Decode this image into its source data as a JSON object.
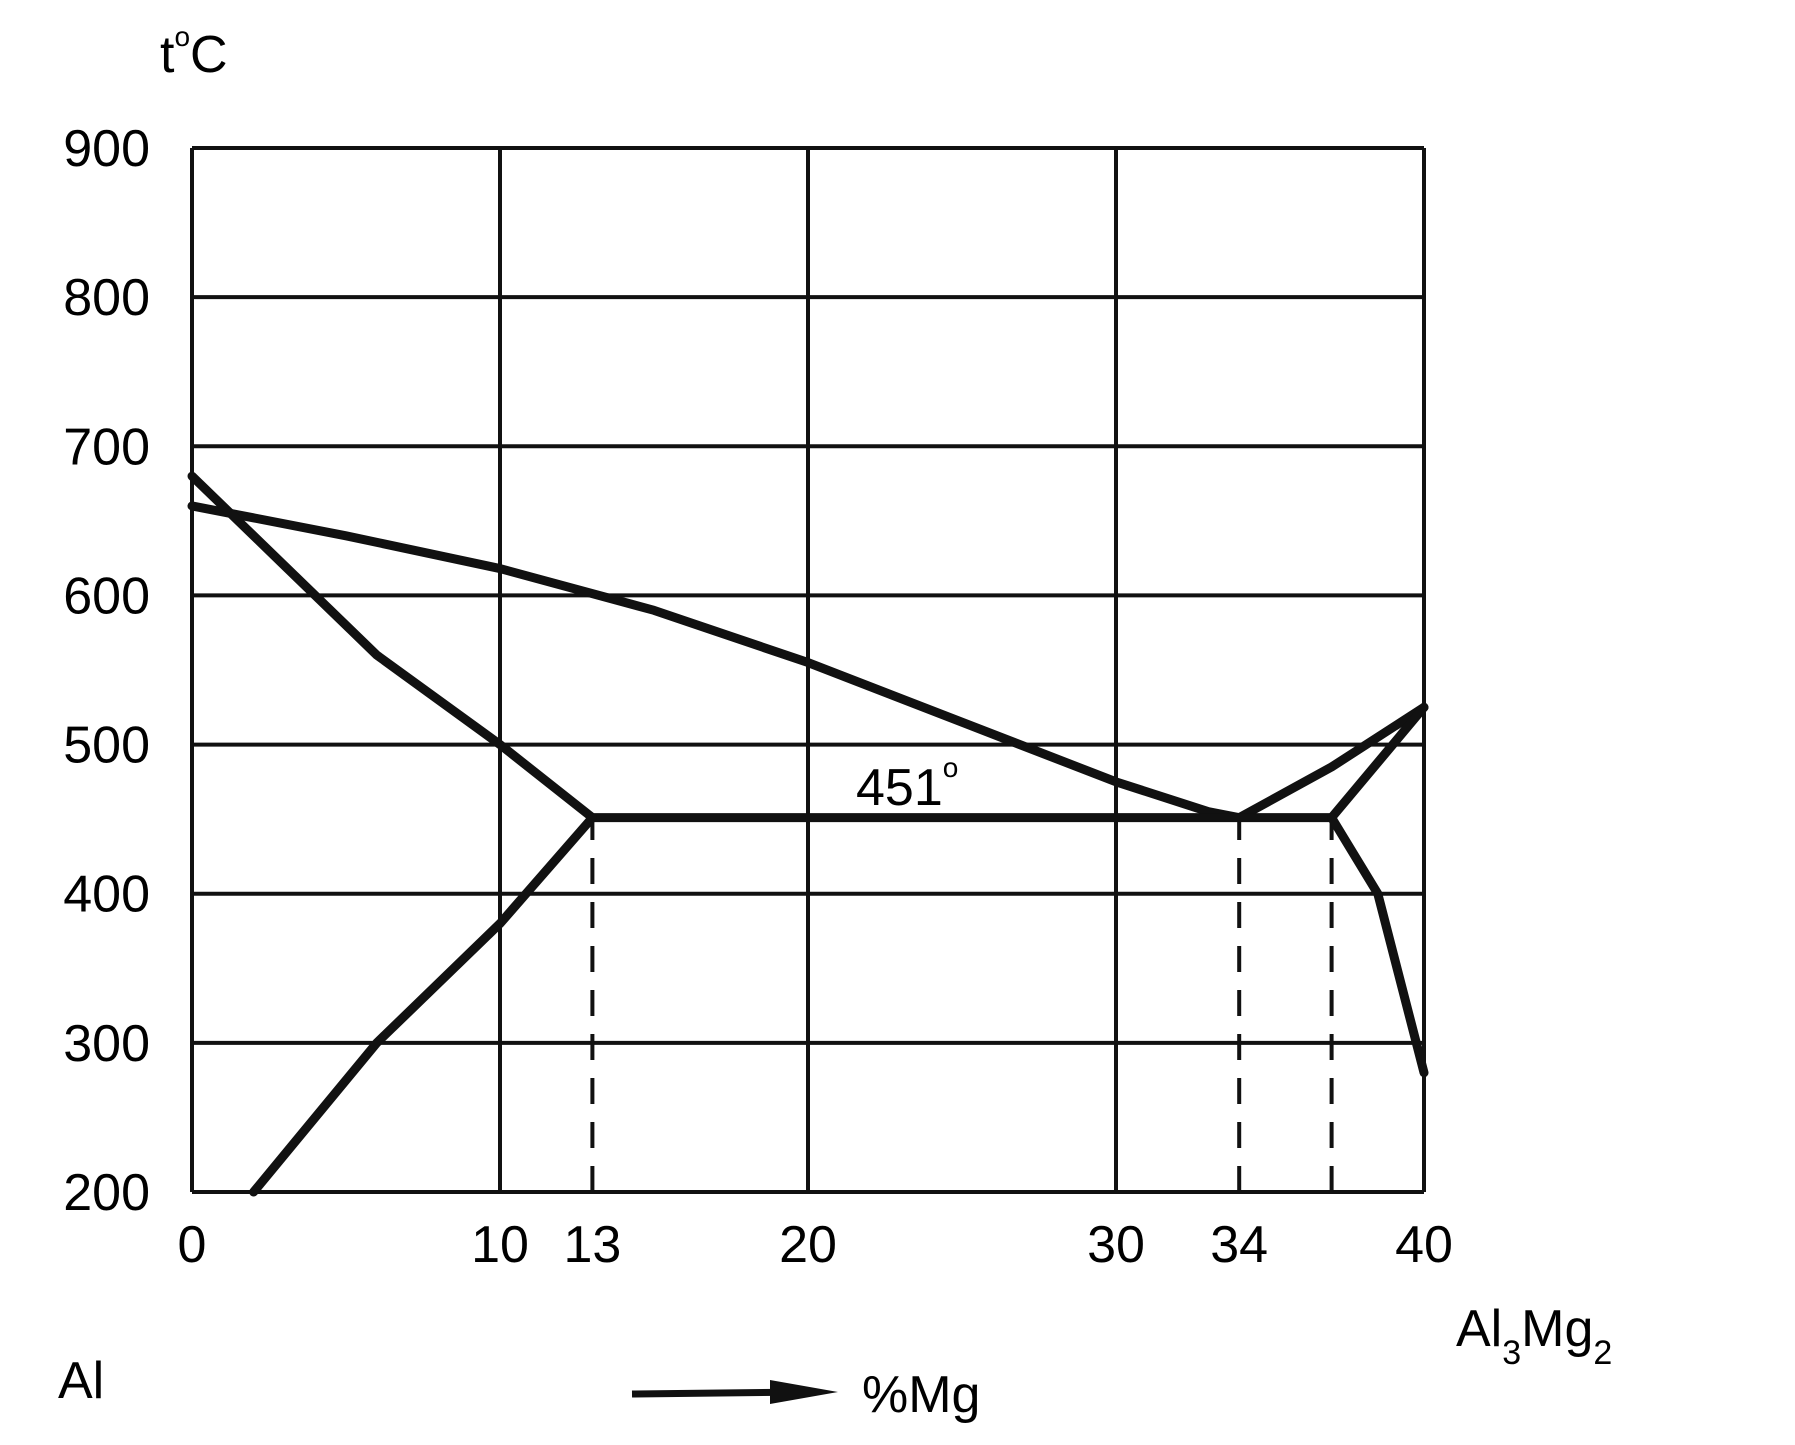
{
  "chart_data": {
    "type": "line",
    "title": "",
    "xlabel": "%Mg",
    "ylabel": "t°C",
    "xlim": [
      0,
      40
    ],
    "ylim": [
      200,
      900
    ],
    "grid": true,
    "y_ticks": [
      "900",
      "800",
      "700",
      "600",
      "500",
      "400",
      "300",
      "200"
    ],
    "x_ticks": [
      {
        "value": 0,
        "label": "0"
      },
      {
        "value": 10,
        "label": "10"
      },
      {
        "value": 13,
        "label": "13"
      },
      {
        "value": 20,
        "label": "20"
      },
      {
        "value": 30,
        "label": "30"
      },
      {
        "value": 34,
        "label": "34"
      },
      {
        "value": 40,
        "label": "40"
      }
    ],
    "grid_x": [
      0,
      10,
      20,
      30,
      40
    ],
    "grid_y": [
      200,
      300,
      400,
      500,
      600,
      700,
      800,
      900
    ],
    "series": [
      {
        "x": [
          0,
          5,
          10,
          15,
          20,
          25,
          30,
          33,
          34
        ],
        "y": [
          660,
          640,
          618,
          590,
          555,
          515,
          475,
          455,
          451
        ]
      },
      {
        "x": [
          34,
          37,
          40
        ],
        "y": [
          451,
          485,
          525
        ]
      },
      {
        "x": [
          0,
          3,
          6,
          10,
          13
        ],
        "y": [
          680,
          620,
          560,
          500,
          451
        ]
      },
      {
        "x": [
          13,
          34,
          37
        ],
        "y": [
          451,
          451,
          451
        ]
      },
      {
        "x": [
          37,
          40
        ],
        "y": [
          451,
          525
        ]
      },
      {
        "x": [
          37,
          38.5,
          40
        ],
        "y": [
          451,
          400,
          280
        ]
      },
      {
        "x": [
          2,
          6,
          10,
          13
        ],
        "y": [
          200,
          300,
          380,
          451
        ]
      }
    ],
    "dashed_verticals": [
      {
        "x": 13,
        "from": 200,
        "to": 451
      },
      {
        "x": 34,
        "from": 200,
        "to": 451
      },
      {
        "x": 37,
        "from": 200,
        "to": 451
      }
    ],
    "annotations": [
      {
        "text": "451",
        "superscript": "o",
        "x": 22.5,
        "y": 462
      }
    ],
    "left_component": "Al",
    "right_component": {
      "base": "Al",
      "sub1": "3",
      "mid": "Mg",
      "sub2": "2"
    },
    "axis_unit_superscript": "o",
    "axis_unit_letter": "C",
    "axis_unit_prefix": "t"
  }
}
